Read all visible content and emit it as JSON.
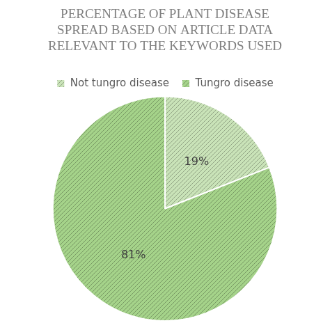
{
  "chart_data": {
    "type": "pie",
    "title": [
      "PERCENTAGE OF PLANT DISEASE",
      "SPREAD BASED ON ARTICLE DATA",
      "RELEVANT TO THE KEYWORDS USED"
    ],
    "categories": [
      "Not tungro disease",
      "Tungro disease"
    ],
    "values": [
      19,
      81
    ],
    "value_labels": [
      "19%",
      "81%"
    ],
    "colors": [
      "#c9e3b8",
      "#a5d38a"
    ],
    "data_labels": true,
    "legend": "top"
  }
}
